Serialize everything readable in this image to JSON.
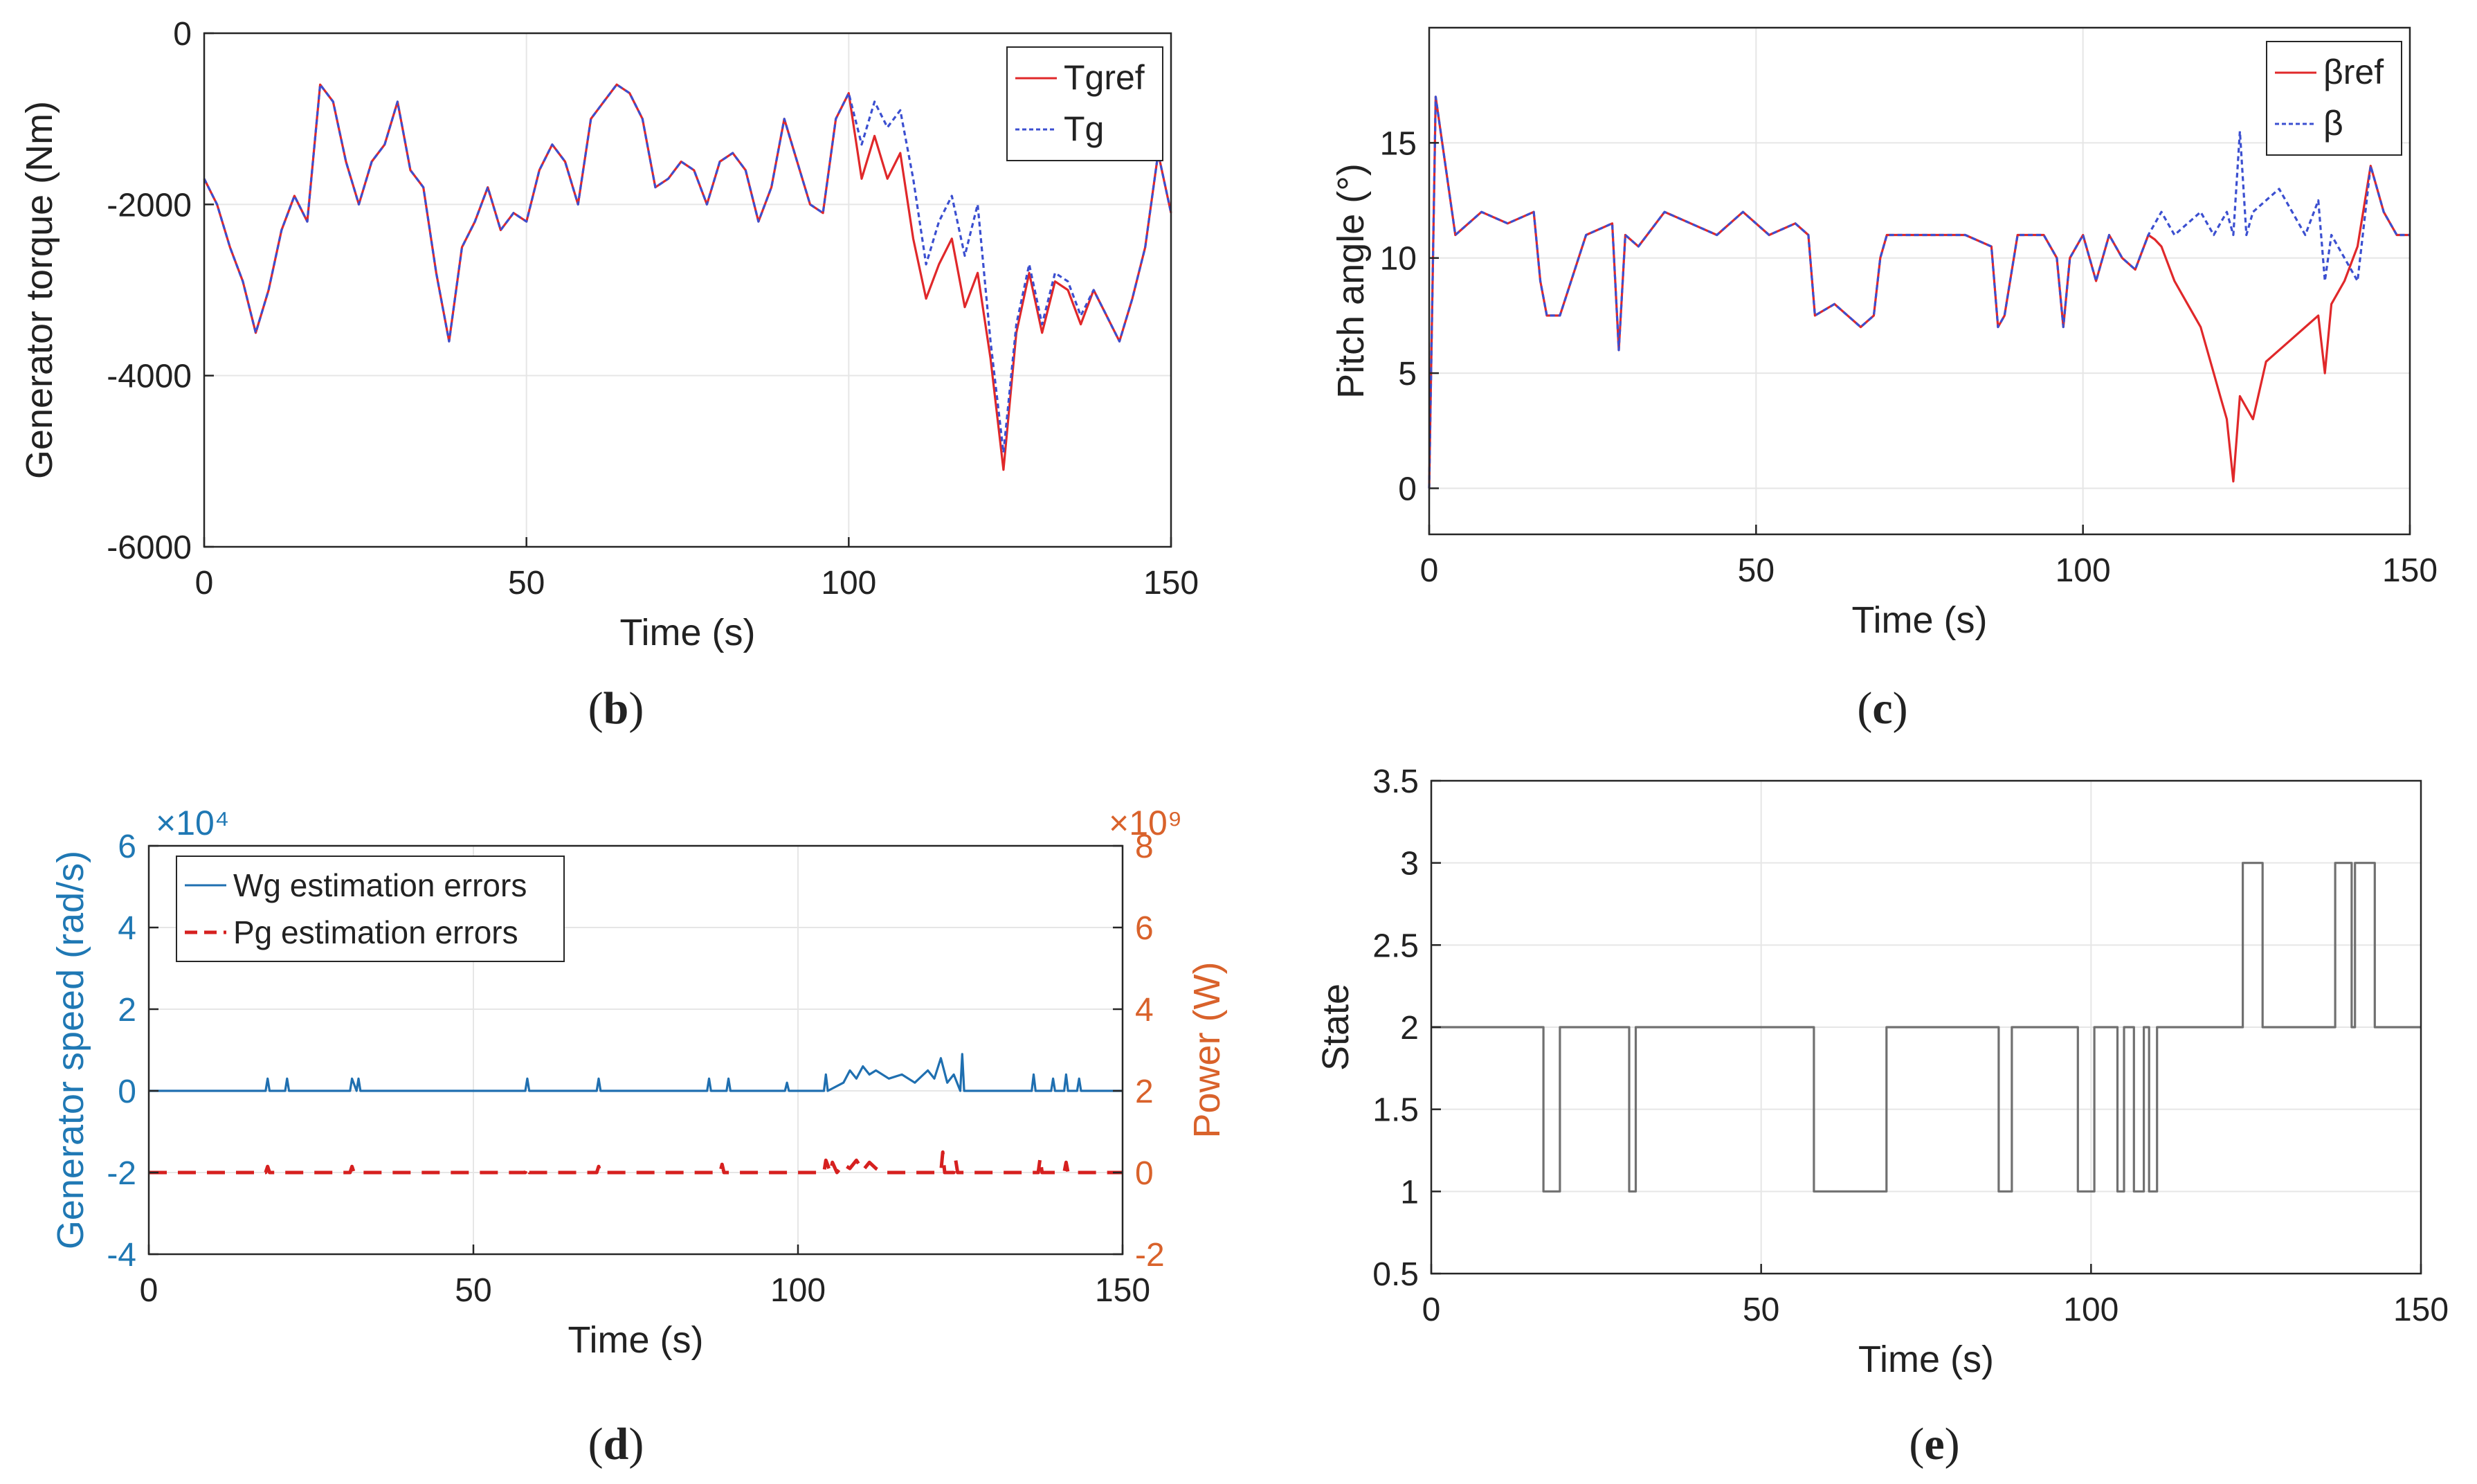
{
  "chart_data": [
    {
      "id": "b",
      "type": "line",
      "panel_label": "b",
      "title": "",
      "xlabel": "Time (s)",
      "ylabel": "Generator torque (Nm)",
      "xlim": [
        0,
        150
      ],
      "ylim": [
        -6000,
        0
      ],
      "xticks": [
        0,
        50,
        100,
        150
      ],
      "yticks": [
        -6000,
        -4000,
        -2000,
        0
      ],
      "grid": true,
      "legend": "top-right",
      "series": [
        {
          "name": "Tgref",
          "color": "#e0282a",
          "style": "solid",
          "x": [
            0,
            2,
            4,
            6,
            8,
            10,
            12,
            14,
            16,
            18,
            20,
            22,
            24,
            26,
            28,
            30,
            32,
            34,
            36,
            38,
            40,
            42,
            44,
            46,
            48,
            50,
            52,
            54,
            56,
            58,
            60,
            62,
            64,
            66,
            68,
            70,
            72,
            74,
            76,
            78,
            80,
            82,
            84,
            86,
            88,
            90,
            92,
            94,
            96,
            98,
            100,
            102,
            104,
            106,
            108,
            110,
            112,
            114,
            116,
            118,
            120,
            122,
            124,
            126,
            128,
            130,
            132,
            134,
            136,
            138,
            140,
            142,
            144,
            146,
            148,
            150
          ],
          "y": [
            -1700,
            -2000,
            -2500,
            -2900,
            -3500,
            -3000,
            -2300,
            -1900,
            -2200,
            -600,
            -800,
            -1500,
            -2000,
            -1500,
            -1300,
            -800,
            -1600,
            -1800,
            -2800,
            -3600,
            -2500,
            -2200,
            -1800,
            -2300,
            -2100,
            -2200,
            -1600,
            -1300,
            -1500,
            -2000,
            -1000,
            -800,
            -600,
            -700,
            -1000,
            -1800,
            -1700,
            -1500,
            -1600,
            -2000,
            -1500,
            -1400,
            -1600,
            -2200,
            -1800,
            -1000,
            -1500,
            -2000,
            -2100,
            -1000,
            -700,
            -1700,
            -1200,
            -1700,
            -1400,
            -2400,
            -3100,
            -2700,
            -2400,
            -3200,
            -2800,
            -3800,
            -5100,
            -3500,
            -2800,
            -3500,
            -2900,
            -3000,
            -3400,
            -3000,
            -3300,
            -3600,
            -3100,
            -2500,
            -1400,
            -2100
          ]
        },
        {
          "name": "Tg",
          "color": "#3b4fd0",
          "style": "dotted",
          "x": [
            0,
            2,
            4,
            6,
            8,
            10,
            12,
            14,
            16,
            18,
            20,
            22,
            24,
            26,
            28,
            30,
            32,
            34,
            36,
            38,
            40,
            42,
            44,
            46,
            48,
            50,
            52,
            54,
            56,
            58,
            60,
            62,
            64,
            66,
            68,
            70,
            72,
            74,
            76,
            78,
            80,
            82,
            84,
            86,
            88,
            90,
            92,
            94,
            96,
            98,
            100,
            102,
            104,
            106,
            108,
            110,
            112,
            114,
            116,
            118,
            120,
            122,
            124,
            126,
            128,
            130,
            132,
            134,
            136,
            138,
            140,
            142,
            144,
            146,
            148,
            150
          ],
          "y": [
            -1700,
            -2000,
            -2500,
            -2900,
            -3500,
            -3000,
            -2300,
            -1900,
            -2200,
            -600,
            -800,
            -1500,
            -2000,
            -1500,
            -1300,
            -800,
            -1600,
            -1800,
            -2800,
            -3600,
            -2500,
            -2200,
            -1800,
            -2300,
            -2100,
            -2200,
            -1600,
            -1300,
            -1500,
            -2000,
            -1000,
            -800,
            -600,
            -700,
            -1000,
            -1800,
            -1700,
            -1500,
            -1600,
            -2000,
            -1500,
            -1400,
            -1600,
            -2200,
            -1800,
            -1000,
            -1500,
            -2000,
            -2100,
            -1000,
            -700,
            -1300,
            -800,
            -1100,
            -900,
            -1700,
            -2700,
            -2200,
            -1900,
            -2600,
            -2000,
            -3600,
            -4900,
            -3400,
            -2700,
            -3400,
            -2800,
            -2900,
            -3300,
            -3000,
            -3300,
            -3600,
            -3100,
            -2500,
            -1400,
            -2100
          ]
        }
      ]
    },
    {
      "id": "c",
      "type": "line",
      "panel_label": "c",
      "title": "",
      "xlabel": "Time (s)",
      "ylabel": "Pitch angle (°)",
      "xlim": [
        0,
        150
      ],
      "ylim": [
        -2,
        20
      ],
      "xticks": [
        0,
        50,
        100,
        150
      ],
      "yticks": [
        0,
        5,
        10,
        15
      ],
      "grid": true,
      "legend": "top-right",
      "series": [
        {
          "name": "βref",
          "color": "#e0282a",
          "style": "solid",
          "x": [
            0,
            1,
            4,
            8,
            12,
            16,
            17,
            18,
            20,
            24,
            28,
            29,
            30,
            32,
            36,
            40,
            44,
            48,
            52,
            56,
            58,
            59,
            62,
            66,
            68,
            69,
            70,
            74,
            78,
            82,
            86,
            87,
            88,
            90,
            94,
            96,
            97,
            98,
            100,
            102,
            104,
            106,
            108,
            110,
            111,
            112,
            114,
            116,
            118,
            120,
            121,
            122,
            123,
            124,
            125,
            126,
            128,
            130,
            132,
            134,
            136,
            137,
            138,
            140,
            142,
            144,
            146,
            148,
            150
          ],
          "y": [
            0,
            17,
            11,
            12,
            11.5,
            12,
            9,
            7.5,
            7.5,
            11,
            11.5,
            6,
            11,
            10.5,
            12,
            11.5,
            11,
            12,
            11,
            11.5,
            11,
            7.5,
            8,
            7,
            7.5,
            10,
            11,
            11,
            11,
            11,
            10.5,
            7,
            7.5,
            11,
            11,
            10,
            7,
            10,
            11,
            9,
            11,
            10,
            9.5,
            11,
            10.8,
            10.5,
            9,
            8,
            7,
            5,
            4,
            3,
            0.3,
            4,
            3.5,
            3,
            5.5,
            6,
            6.5,
            7,
            7.5,
            5,
            8,
            9,
            10.5,
            14,
            12,
            11,
            11
          ]
        },
        {
          "name": "β",
          "color": "#3b4fd0",
          "style": "dotted",
          "x": [
            0,
            1,
            4,
            8,
            12,
            16,
            17,
            18,
            20,
            24,
            28,
            29,
            30,
            32,
            36,
            40,
            44,
            48,
            52,
            56,
            58,
            59,
            62,
            66,
            68,
            69,
            70,
            74,
            78,
            82,
            86,
            87,
            88,
            90,
            94,
            96,
            97,
            98,
            100,
            102,
            104,
            106,
            108,
            110,
            111,
            112,
            114,
            116,
            118,
            120,
            121,
            122,
            123,
            124,
            125,
            126,
            128,
            130,
            132,
            134,
            136,
            137,
            138,
            140,
            142,
            144,
            146,
            148,
            150
          ],
          "y": [
            0,
            17,
            11,
            12,
            11.5,
            12,
            9,
            7.5,
            7.5,
            11,
            11.5,
            6,
            11,
            10.5,
            12,
            11.5,
            11,
            12,
            11,
            11.5,
            11,
            7.5,
            8,
            7,
            7.5,
            10,
            11,
            11,
            11,
            11,
            10.5,
            7,
            7.5,
            11,
            11,
            10,
            7,
            10,
            11,
            9,
            11,
            10,
            9.5,
            11,
            11.5,
            12,
            11,
            11.5,
            12,
            11,
            11.5,
            12,
            11,
            15.5,
            11,
            12,
            12.5,
            13,
            12,
            11,
            12.5,
            9,
            11,
            10,
            9,
            14,
            12,
            11,
            11
          ]
        }
      ]
    },
    {
      "id": "d",
      "type": "line",
      "panel_label": "d",
      "title": "",
      "xlabel": "Time (s)",
      "ylabel": "Generator speed (rad/s)",
      "ylabel_right": "Power (W)",
      "xlim": [
        0,
        150
      ],
      "ylim": [
        -4,
        6
      ],
      "ylim_right": [
        -2,
        8
      ],
      "exponent_left": "×10⁴",
      "exponent_right": "×10⁹",
      "xticks": [
        0,
        50,
        100,
        150
      ],
      "yticks": [
        -4,
        -2,
        0,
        2,
        4,
        6
      ],
      "yticks_right": [
        -2,
        0,
        2,
        4,
        6,
        8
      ],
      "grid": true,
      "legend": "top-left",
      "series": [
        {
          "name": "Wg estimation errors",
          "axis": "left",
          "color": "#1f6fb0",
          "style": "solid",
          "x": [
            0,
            18,
            18.3,
            18.6,
            21,
            21.3,
            21.6,
            31,
            31.3,
            32,
            32.3,
            32.6,
            58,
            58.3,
            58.6,
            69,
            69.3,
            69.6,
            86,
            86.3,
            86.6,
            89,
            89.3,
            89.6,
            98,
            98.3,
            98.6,
            104,
            104.3,
            104.6,
            107,
            108,
            109,
            110,
            111,
            112,
            114,
            116,
            118,
            120,
            121,
            122,
            123,
            124,
            125,
            125.3,
            125.6,
            126,
            136,
            136.3,
            136.6,
            139,
            139.3,
            139.6,
            141,
            141.3,
            141.6,
            143,
            143.3,
            143.6,
            150
          ],
          "y": [
            0,
            0,
            0.3,
            0,
            0,
            0.3,
            0,
            0,
            0.3,
            0,
            0.3,
            0,
            0,
            0.3,
            0,
            0,
            0.3,
            0,
            0,
            0.3,
            0,
            0,
            0.3,
            0,
            0,
            0.2,
            0,
            0,
            0.4,
            0,
            0.2,
            0.5,
            0.3,
            0.6,
            0.4,
            0.5,
            0.3,
            0.4,
            0.2,
            0.5,
            0.3,
            0.8,
            0.2,
            0.4,
            0,
            0.9,
            0,
            0,
            0,
            0.4,
            0,
            0,
            0.3,
            0,
            0,
            0.4,
            0,
            0,
            0.3,
            0,
            0
          ]
        },
        {
          "name": "Pg estimation errors",
          "axis": "right",
          "color": "#d6201f",
          "style": "dashed",
          "x": [
            0,
            18,
            18.3,
            18.6,
            31,
            31.3,
            31.6,
            58,
            58.3,
            58.6,
            69,
            69.3,
            69.6,
            88,
            88.3,
            88.6,
            104,
            104.3,
            105,
            105.3,
            106,
            107,
            108,
            109,
            110,
            111,
            112,
            113,
            122,
            122.3,
            122.6,
            124,
            124.3,
            124.6,
            137,
            137.3,
            137.6,
            141,
            141.3,
            141.6,
            150
          ],
          "y": [
            0,
            0,
            0.15,
            0,
            0,
            0.15,
            0,
            0,
            0.15,
            0,
            0,
            0.15,
            0,
            0,
            0.2,
            0,
            0,
            0.3,
            0,
            0.25,
            0,
            0.2,
            0.1,
            0.3,
            0.05,
            0.25,
            0.1,
            0,
            0,
            0.5,
            0,
            0,
            0.3,
            0,
            0,
            0.35,
            0,
            0,
            0.25,
            0,
            0
          ]
        }
      ]
    },
    {
      "id": "e",
      "type": "line",
      "panel_label": "e",
      "title": "",
      "xlabel": "Time (s)",
      "ylabel": "State",
      "xlim": [
        0,
        150
      ],
      "ylim": [
        0.5,
        3.5
      ],
      "xticks": [
        0,
        50,
        100,
        150
      ],
      "yticks": [
        0.5,
        1,
        1.5,
        2,
        2.5,
        3,
        3.5
      ],
      "grid": true,
      "legend": "none",
      "series": [
        {
          "color": "#707070",
          "style": "step",
          "x": [
            0,
            17,
            17,
            19.5,
            19.5,
            30,
            30,
            31,
            31,
            58,
            58,
            69,
            69,
            86,
            86,
            88,
            88,
            98,
            98,
            100.5,
            100.5,
            104,
            104,
            105,
            105,
            106.5,
            106.5,
            108,
            108,
            108.8,
            108.8,
            110,
            110,
            123,
            123,
            126,
            126,
            137,
            137,
            139.5,
            139.5,
            140,
            140,
            143,
            143,
            150
          ],
          "y": [
            2,
            2,
            1,
            1,
            2,
            2,
            1,
            1,
            2,
            2,
            1,
            1,
            2,
            2,
            1,
            1,
            2,
            2,
            1,
            1,
            2,
            2,
            1,
            1,
            2,
            2,
            1,
            1,
            2,
            2,
            1,
            1,
            2,
            2,
            3,
            3,
            2,
            2,
            3,
            3,
            2,
            2,
            3,
            3,
            2,
            2
          ]
        }
      ]
    }
  ]
}
